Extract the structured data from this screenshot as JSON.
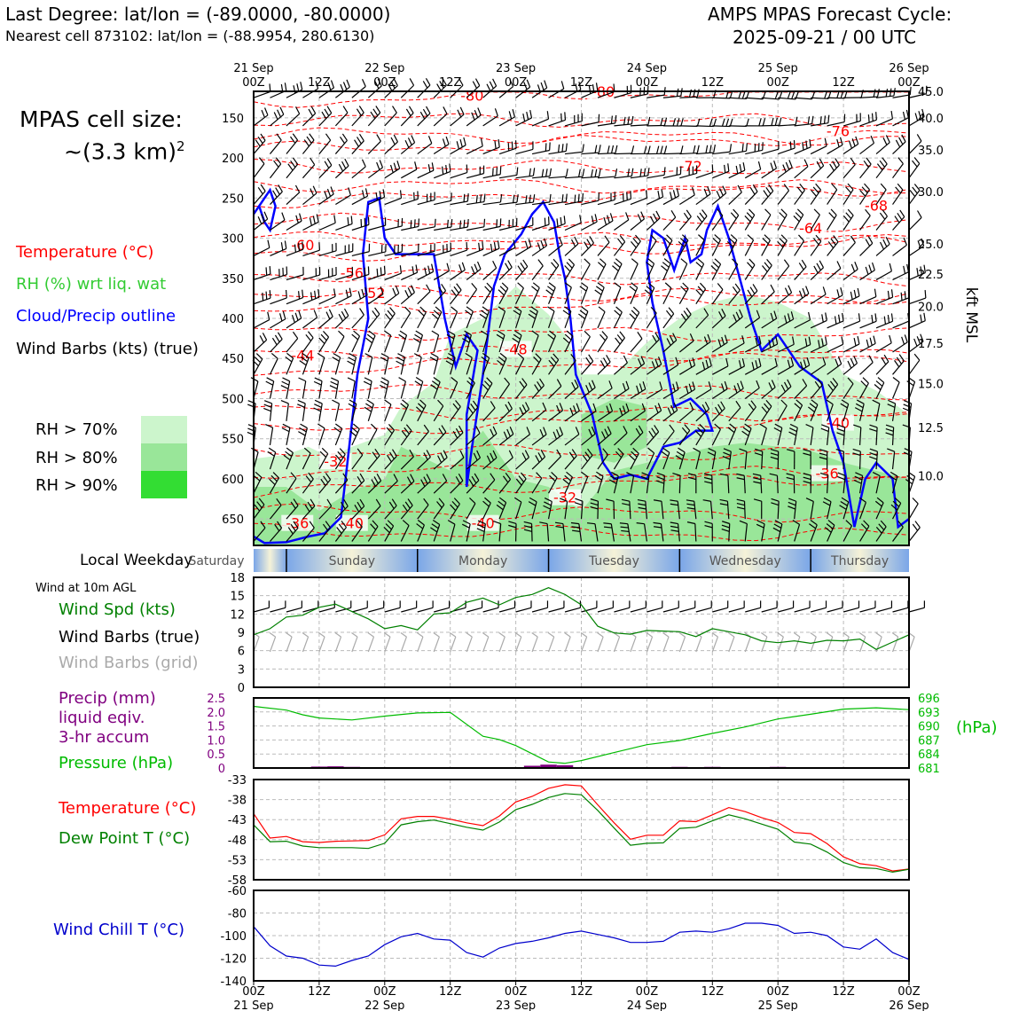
{
  "header": {
    "left_line1": "Last Degree: lat/lon = (-89.0000, -80.0000)",
    "left_line2": "Nearest cell 873102: lat/lon = (-88.9954, 280.6130)",
    "right_line1": "AMPS MPAS Forecast Cycle:",
    "right_line2": "2025-09-21 / 00 UTC"
  },
  "left_panel": {
    "cell_size_line1": "MPAS cell size:",
    "cell_size_line2": "~(3.3 km)",
    "cell_size_exp": "2",
    "legend_temperature": "Temperature (°C)",
    "legend_rh": "RH (%) wrt liq. wat",
    "legend_cloud": "Cloud/Precip outline",
    "legend_wind": "Wind Barbs (kts) (true)",
    "rh_70": "RH > 70%",
    "rh_80": "RH > 80%",
    "rh_90": "RH > 90%"
  },
  "colors": {
    "temperature": "#ff0000",
    "rh_text": "#33cc33",
    "cloud": "#0000ff",
    "rh70": "#ccf5cc",
    "rh80": "#99e699",
    "rh90": "#33dd33",
    "wind_spd": "#008000",
    "precip": "#800080",
    "pressure": "#00bb00",
    "dewpoint": "#008000",
    "windchill": "#0000cc",
    "grid_barb": "#aaaaaa"
  },
  "time_axis": {
    "top_dates": [
      "21 Sep",
      "",
      "22 Sep",
      "",
      "23 Sep",
      "",
      "24 Sep",
      "",
      "25 Sep",
      "",
      "26 Sep"
    ],
    "top_hours": [
      "00Z",
      "12Z",
      "00Z",
      "12Z",
      "00Z",
      "12Z",
      "00Z",
      "12Z",
      "00Z",
      "12Z",
      "00Z"
    ],
    "bottom_hours": [
      "00Z",
      "12Z",
      "00Z",
      "12Z",
      "00Z",
      "12Z",
      "00Z",
      "12Z",
      "00Z",
      "12Z",
      "00Z"
    ],
    "bottom_dates": [
      "21 Sep",
      "",
      "22 Sep",
      "",
      "23 Sep",
      "",
      "24 Sep",
      "",
      "25 Sep",
      "",
      "26 Sep"
    ]
  },
  "weekday": {
    "label": "Local Weekday",
    "days": [
      "Saturday",
      "Sunday",
      "Monday",
      "Tuesday",
      "Wednesday",
      "Thursday"
    ]
  },
  "wind_panel": {
    "title": "Wind at 10m AGL",
    "legend_spd": "Wind Spd (kts)",
    "legend_barbs_true": "Wind Barbs (true)",
    "legend_barbs_grid": "Wind Barbs (grid)"
  },
  "precip_panel": {
    "legend_precip1": "Precip (mm)",
    "legend_precip2": "liquid eqiv.",
    "legend_precip3": "3-hr accum",
    "legend_pressure": "Pressure (hPa)",
    "right_unit": "(hPa)"
  },
  "temp_panel": {
    "legend_temp": "Temperature (°C)",
    "legend_dew": "Dew Point T (°C)"
  },
  "chill_panel": {
    "legend": "Wind Chill T (°C)"
  },
  "chart_data": [
    {
      "type": "heatmap",
      "x": "forecast hour 0-120 (3-hourly)",
      "y_left_ticks": [
        150,
        200,
        250,
        300,
        350,
        400,
        450,
        500,
        550,
        600,
        650
      ],
      "y_right_ticks": [
        "45.0",
        "40.0",
        "35.0",
        "30.0",
        "25.0",
        "22.5",
        "20.0",
        "17.5",
        "15.0",
        "12.5",
        "10.0"
      ],
      "ylabel_right": "kft MSL",
      "isotherm_labels": [
        {
          "text": "-80",
          "t": 40,
          "p": 122
        },
        {
          "text": "-80",
          "t": 64,
          "p": 117
        },
        {
          "text": "-76",
          "t": 107,
          "p": 166
        },
        {
          "text": "-72",
          "t": 80,
          "p": 210
        },
        {
          "text": "-68",
          "t": 114,
          "p": 259
        },
        {
          "text": "-64",
          "t": 102,
          "p": 287
        },
        {
          "text": "-60",
          "t": 9,
          "p": 308
        },
        {
          "text": "-56",
          "t": 18,
          "p": 343
        },
        {
          "text": "-52",
          "t": 22,
          "p": 368
        },
        {
          "text": "-48",
          "t": 48,
          "p": 438
        },
        {
          "text": "-44",
          "t": 9,
          "p": 446
        },
        {
          "text": "-40",
          "t": 107,
          "p": 530
        },
        {
          "text": "-36",
          "t": 105,
          "p": 593
        },
        {
          "text": "-32",
          "t": 15,
          "p": 578
        },
        {
          "text": "-32",
          "t": 57,
          "p": 623
        },
        {
          "text": "-40",
          "t": 42,
          "p": 655
        },
        {
          "text": "-36",
          "t": 8,
          "p": 655
        },
        {
          "text": "-40",
          "t": 18,
          "p": 655
        }
      ]
    },
    {
      "type": "line",
      "title": "Wind at 10m AGL",
      "ylabel": "Wind Spd (kts)",
      "ylim": [
        0,
        18
      ],
      "y_ticks": [
        0,
        3,
        6,
        9,
        12,
        15,
        18
      ],
      "x": [
        0,
        3,
        6,
        9,
        12,
        15,
        18,
        21,
        24,
        27,
        30,
        33,
        36,
        39,
        42,
        45,
        48,
        51,
        54,
        57,
        60,
        63,
        66,
        69,
        72,
        75,
        78,
        81,
        84,
        87,
        90,
        93,
        96,
        99,
        102,
        105,
        108,
        111,
        114,
        117,
        120
      ],
      "series": [
        {
          "name": "Wind Spd (kts)",
          "values": [
            8.6,
            9.6,
            11.5,
            11.8,
            13.1,
            13.6,
            12.4,
            11.2,
            9.6,
            10.1,
            9.4,
            12.0,
            12.2,
            13.9,
            14.6,
            13.5,
            14.7,
            15.2,
            16.3,
            15.2,
            13.5,
            10.0,
            8.9,
            8.7,
            9.3,
            9.2,
            9.1,
            8.3,
            9.6,
            9.1,
            8.6,
            7.6,
            7.3,
            7.6,
            7.2,
            7.7,
            7.6,
            7.9,
            6.2,
            7.4,
            8.6
          ]
        }
      ]
    },
    {
      "type": "line",
      "ylabel": "Precip (mm)",
      "ylim": [
        0,
        2.5
      ],
      "y_ticks": [
        0,
        0.5,
        1.0,
        1.5,
        2.0,
        2.5
      ],
      "y2lim": [
        681,
        696
      ],
      "y2_ticks": [
        681,
        684,
        687,
        690,
        693,
        696
      ],
      "x": [
        0,
        6,
        9,
        12,
        18,
        24,
        30,
        36,
        42,
        45,
        48,
        54,
        57,
        60,
        66,
        72,
        78,
        84,
        90,
        96,
        102,
        108,
        114,
        120
      ],
      "series": [
        {
          "name": "Pressure (hPa)",
          "values": [
            694.2,
            693.4,
            692.4,
            691.7,
            691.3,
            692.1,
            692.8,
            692.9,
            687.8,
            687.1,
            685.8,
            682.3,
            682.0,
            682.6,
            684.3,
            686.0,
            686.9,
            688.4,
            689.8,
            691.5,
            692.5,
            693.6,
            693.9,
            693.5
          ]
        },
        {
          "name": "Precip (mm)",
          "bars": [
            [
              12,
              0.05
            ],
            [
              15,
              0.06
            ],
            [
              18,
              0.04
            ],
            [
              51,
              0.08
            ],
            [
              54,
              0.12
            ],
            [
              57,
              0.1
            ],
            [
              72,
              0.03
            ],
            [
              78,
              0.04
            ],
            [
              84,
              0.04
            ],
            [
              96,
              0.04
            ]
          ]
        }
      ]
    },
    {
      "type": "line",
      "ylim": [
        -58,
        -33
      ],
      "y_ticks": [
        -33,
        -38,
        -43,
        -48,
        -53,
        -58
      ],
      "x": [
        0,
        3,
        6,
        9,
        12,
        15,
        18,
        21,
        24,
        27,
        30,
        33,
        36,
        39,
        42,
        45,
        48,
        51,
        54,
        57,
        60,
        63,
        66,
        69,
        72,
        75,
        78,
        81,
        84,
        87,
        90,
        93,
        96,
        99,
        102,
        105,
        108,
        111,
        114,
        117,
        120
      ],
      "series": [
        {
          "name": "Temperature (°C)",
          "values": [
            -41.5,
            -47.6,
            -47.2,
            -48.5,
            -48.7,
            -48.4,
            -48.3,
            -48.2,
            -46.8,
            -42.8,
            -42.2,
            -42.2,
            -42.9,
            -43.8,
            -44.5,
            -42.1,
            -38.6,
            -37.2,
            -35.2,
            -34.3,
            -34.6,
            -39.3,
            -43.8,
            -47.9,
            -46.9,
            -46.9,
            -43.3,
            -43.5,
            -41.8,
            -40.0,
            -41.0,
            -42.5,
            -43.7,
            -46.2,
            -46.5,
            -49.0,
            -52.3,
            -54.0,
            -54.5,
            -55.8,
            -55.3
          ]
        },
        {
          "name": "Dew Point T (°C)",
          "values": [
            -44.3,
            -48.5,
            -48.4,
            -49.6,
            -50.0,
            -50.0,
            -50.0,
            -50.2,
            -48.9,
            -44.3,
            -43.5,
            -43.1,
            -44.0,
            -44.9,
            -45.6,
            -43.6,
            -40.5,
            -39.2,
            -37.5,
            -36.5,
            -36.8,
            -40.7,
            -45.1,
            -49.4,
            -48.9,
            -48.8,
            -45.2,
            -44.9,
            -43.3,
            -41.8,
            -42.8,
            -44.1,
            -45.4,
            -48.6,
            -49.1,
            -51.1,
            -53.7,
            -55.0,
            -55.2,
            -56.1,
            -55.4
          ]
        }
      ]
    },
    {
      "type": "line",
      "ylim": [
        -140,
        -60
      ],
      "y_ticks": [
        -60,
        -80,
        -100,
        -120,
        -140
      ],
      "x": [
        0,
        3,
        6,
        9,
        12,
        15,
        18,
        21,
        24,
        27,
        30,
        33,
        36,
        39,
        42,
        45,
        48,
        51,
        54,
        57,
        60,
        63,
        66,
        69,
        72,
        75,
        78,
        81,
        84,
        87,
        90,
        93,
        96,
        99,
        102,
        105,
        108,
        111,
        114,
        117,
        120
      ],
      "series": [
        {
          "name": "Wind Chill T (°C)",
          "values": [
            -92,
            -109,
            -118,
            -120,
            -126,
            -127,
            -122,
            -118,
            -108,
            -101,
            -98,
            -103,
            -104,
            -115,
            -119,
            -111,
            -107,
            -105,
            -102,
            -98,
            -96,
            -99,
            -102,
            -106,
            -106,
            -105,
            -97,
            -96,
            -97,
            -94,
            -89,
            -89,
            -91,
            -98,
            -97,
            -100,
            -110,
            -112,
            -103,
            -115,
            -121
          ]
        }
      ]
    }
  ]
}
